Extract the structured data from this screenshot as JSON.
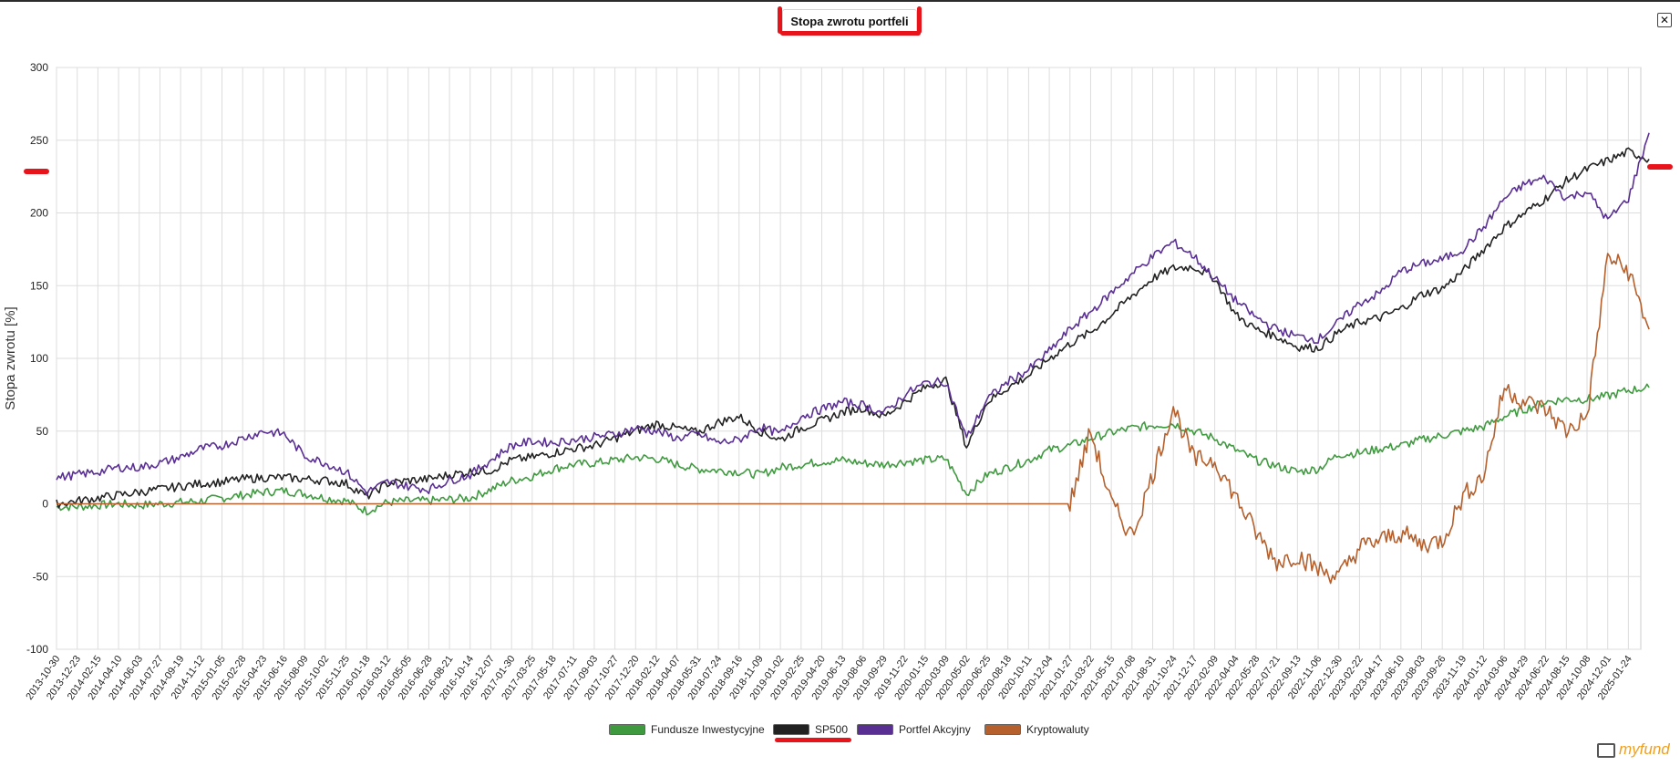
{
  "window": {
    "title": "Stopa zwrotu portfeli",
    "close_icon": "close-icon",
    "logo": "myfund"
  },
  "chart_data": {
    "type": "line",
    "title": "Stopa zwrotu portfeli",
    "ylabel": "Stopa zwrotu [%]",
    "xlabel": "",
    "ylim": [
      -100,
      300
    ],
    "yticks": [
      -100,
      -50,
      0,
      50,
      100,
      150,
      200,
      250,
      300
    ],
    "grid": true,
    "legend_position": "bottom",
    "x": [
      "2013-10-30",
      "2013-12-23",
      "2014-02-15",
      "2014-04-10",
      "2014-06-03",
      "2014-07-27",
      "2014-09-19",
      "2014-11-12",
      "2015-01-05",
      "2015-02-28",
      "2015-04-23",
      "2015-06-16",
      "2015-08-09",
      "2015-10-02",
      "2015-11-25",
      "2016-01-18",
      "2016-03-12",
      "2016-05-05",
      "2016-06-28",
      "2016-08-21",
      "2016-10-14",
      "2016-12-07",
      "2017-01-30",
      "2017-03-25",
      "2017-05-18",
      "2017-07-11",
      "2017-09-03",
      "2017-10-27",
      "2017-12-20",
      "2018-02-12",
      "2018-04-07",
      "2018-05-31",
      "2018-07-24",
      "2018-09-16",
      "2018-11-09",
      "2019-01-02",
      "2019-02-25",
      "2019-04-20",
      "2019-06-13",
      "2019-08-06",
      "2019-09-29",
      "2019-11-22",
      "2020-01-15",
      "2020-03-09",
      "2020-05-02",
      "2020-06-25",
      "2020-08-18",
      "2020-10-11",
      "2020-12-04",
      "2021-01-27",
      "2021-03-22",
      "2021-05-15",
      "2021-07-08",
      "2021-08-31",
      "2021-10-24",
      "2021-12-17",
      "2022-02-09",
      "2022-04-04",
      "2022-05-28",
      "2022-07-21",
      "2022-09-13",
      "2022-11-06",
      "2022-12-30",
      "2023-02-22",
      "2023-04-17",
      "2023-06-10",
      "2023-08-03",
      "2023-09-26",
      "2023-11-19",
      "2024-01-12",
      "2024-03-06",
      "2024-04-29",
      "2024-06-22",
      "2024-08-15",
      "2024-10-08",
      "2024-12-01",
      "2025-01-24",
      "2025-03-10"
    ],
    "x_tick_labels": [
      "2013-10-30",
      "2013-12-23",
      "2014-02-15",
      "2014-04-10",
      "2014-06-03",
      "2014-07-27",
      "2014-09-19",
      "2014-11-12",
      "2015-01-05",
      "2015-02-28",
      "2015-04-23",
      "2015-06-16",
      "2015-08-09",
      "2015-10-02",
      "2015-11-25",
      "2016-01-18",
      "2016-03-12",
      "2016-05-05",
      "2016-06-28",
      "2016-08-21",
      "2016-10-14",
      "2016-12-07",
      "2017-01-30",
      "2017-03-25",
      "2017-05-18",
      "2017-07-11",
      "2017-09-03",
      "2017-10-27",
      "2017-12-20",
      "2018-02-12",
      "2018-04-07",
      "2018-05-31",
      "2018-07-24",
      "2018-09-16",
      "2018-11-09",
      "2019-01-02",
      "2019-02-25",
      "2019-04-20",
      "2019-06-13",
      "2019-08-06",
      "2019-09-29",
      "2019-11-22",
      "2020-01-15",
      "2020-03-09",
      "2020-05-02",
      "2020-06-25",
      "2020-08-18",
      "2020-10-11",
      "2020-12-04",
      "2021-01-27",
      "2021-03-22",
      "2021-05-15",
      "2021-07-08",
      "2021-08-31",
      "2021-10-24",
      "2021-12-17",
      "2022-02-09",
      "2022-04-04",
      "2022-05-28",
      "2022-07-21",
      "2022-09-13",
      "2022-11-06",
      "2022-12-30",
      "2023-02-22",
      "2023-04-17",
      "2023-06-10",
      "2023-08-03",
      "2023-09-26",
      "2023-11-19",
      "2024-01-12",
      "2024-03-06",
      "2024-04-29",
      "2024-06-22",
      "2024-08-15",
      "2024-10-08",
      "2024-12-01",
      "2025-01-24"
    ],
    "series": [
      {
        "name": "Fundusze Inwestycyjne",
        "color": "#3f9a3f",
        "values": [
          -2,
          -2,
          -1,
          0,
          -1,
          0,
          1,
          2,
          4,
          6,
          8,
          9,
          7,
          4,
          2,
          -5,
          1,
          2,
          2,
          3,
          4,
          10,
          16,
          19,
          24,
          27,
          28,
          30,
          32,
          31,
          27,
          24,
          23,
          22,
          20,
          25,
          27,
          29,
          30,
          28,
          27,
          29,
          30,
          31,
          7,
          20,
          25,
          30,
          37,
          40,
          45,
          49,
          52,
          54,
          55,
          50,
          45,
          37,
          30,
          26,
          22,
          24,
          34,
          35,
          38,
          40,
          44,
          47,
          50,
          53,
          60,
          65,
          70,
          72,
          72,
          74,
          78,
          80
        ]
      },
      {
        "name": "SP500",
        "color": "#222222",
        "values": [
          0,
          2,
          4,
          6,
          8,
          10,
          12,
          14,
          15,
          17,
          18,
          18,
          17,
          16,
          14,
          5,
          14,
          16,
          17,
          20,
          22,
          23,
          30,
          32,
          35,
          38,
          40,
          45,
          50,
          55,
          52,
          49,
          56,
          60,
          50,
          44,
          52,
          57,
          63,
          66,
          60,
          70,
          80,
          85,
          39,
          70,
          80,
          88,
          100,
          110,
          118,
          130,
          143,
          155,
          162,
          163,
          155,
          130,
          120,
          115,
          108,
          107,
          118,
          125,
          128,
          134,
          144,
          148,
          160,
          175,
          190,
          200,
          210,
          222,
          230,
          236,
          242,
          237
        ]
      },
      {
        "name": "Portfel Akcyjny",
        "color": "#5a2f94",
        "values": [
          18,
          20,
          22,
          25,
          25,
          28,
          32,
          38,
          40,
          45,
          50,
          48,
          33,
          28,
          22,
          8,
          15,
          12,
          10,
          16,
          20,
          30,
          40,
          43,
          42,
          44,
          46,
          48,
          52,
          50,
          45,
          48,
          42,
          44,
          53,
          48,
          60,
          65,
          70,
          68,
          62,
          75,
          83,
          84,
          45,
          72,
          84,
          92,
          105,
          120,
          132,
          145,
          158,
          170,
          180,
          170,
          155,
          140,
          128,
          120,
          115,
          113,
          125,
          138,
          145,
          160,
          165,
          168,
          175,
          190,
          210,
          220,
          224,
          210,
          215,
          195,
          210,
          255
        ]
      },
      {
        "name": "Kryptowaluty",
        "color": "#b5602d",
        "values": [
          0,
          0,
          0,
          0,
          0,
          0,
          0,
          0,
          0,
          0,
          0,
          0,
          0,
          0,
          0,
          0,
          0,
          0,
          0,
          0,
          0,
          0,
          0,
          0,
          0,
          0,
          0,
          0,
          0,
          0,
          0,
          0,
          0,
          0,
          0,
          0,
          0,
          0,
          0,
          0,
          0,
          0,
          0,
          0,
          0,
          0,
          0,
          0,
          0,
          0,
          50,
          0,
          -22,
          20,
          67,
          30,
          30,
          5,
          -20,
          -40,
          -35,
          -45,
          -50,
          -30,
          -25,
          -20,
          -28,
          -25,
          5,
          20,
          80,
          70,
          65,
          50,
          60,
          170,
          160,
          120
        ]
      }
    ]
  }
}
